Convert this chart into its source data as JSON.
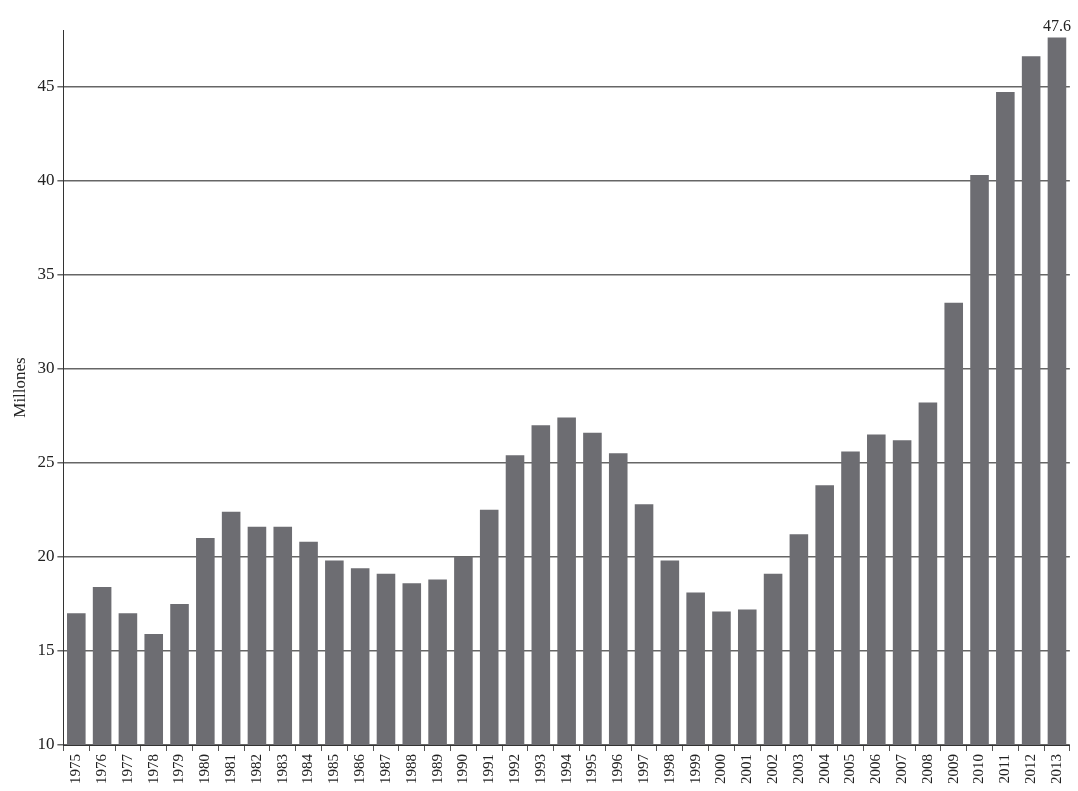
{
  "chart_data": {
    "type": "bar",
    "ylabel": "Millones",
    "categories": [
      "1975",
      "1976",
      "1977",
      "1978",
      "1979",
      "1980",
      "1981",
      "1982",
      "1983",
      "1984",
      "1985",
      "1986",
      "1987",
      "1988",
      "1989",
      "1990",
      "1991",
      "1992",
      "1993",
      "1994",
      "1995",
      "1996",
      "1997",
      "1998",
      "1999",
      "2000",
      "2001",
      "2002",
      "2003",
      "2004",
      "2005",
      "2006",
      "2007",
      "2008",
      "2009",
      "2010",
      "2011",
      "2012",
      "2013"
    ],
    "values": [
      17.0,
      18.4,
      17.0,
      15.9,
      17.5,
      21.0,
      22.4,
      21.6,
      21.6,
      20.8,
      19.8,
      19.4,
      19.1,
      18.6,
      18.8,
      20.0,
      22.5,
      25.4,
      27.0,
      27.4,
      26.6,
      25.5,
      22.8,
      19.8,
      18.1,
      17.1,
      17.2,
      19.1,
      21.2,
      23.8,
      25.6,
      26.5,
      26.2,
      28.2,
      33.5,
      40.3,
      44.7,
      46.6,
      47.6
    ],
    "value_labels": [
      null,
      null,
      null,
      null,
      null,
      null,
      null,
      null,
      null,
      null,
      null,
      null,
      null,
      null,
      null,
      null,
      null,
      null,
      null,
      null,
      null,
      null,
      null,
      null,
      null,
      null,
      null,
      null,
      null,
      null,
      null,
      null,
      null,
      null,
      null,
      null,
      null,
      null,
      "47.6"
    ],
    "color": "#6d6d72",
    "ylim": [
      10,
      48
    ],
    "yticks": [
      10,
      15,
      20,
      25,
      30,
      35,
      40,
      45
    ],
    "grid": "y"
  }
}
